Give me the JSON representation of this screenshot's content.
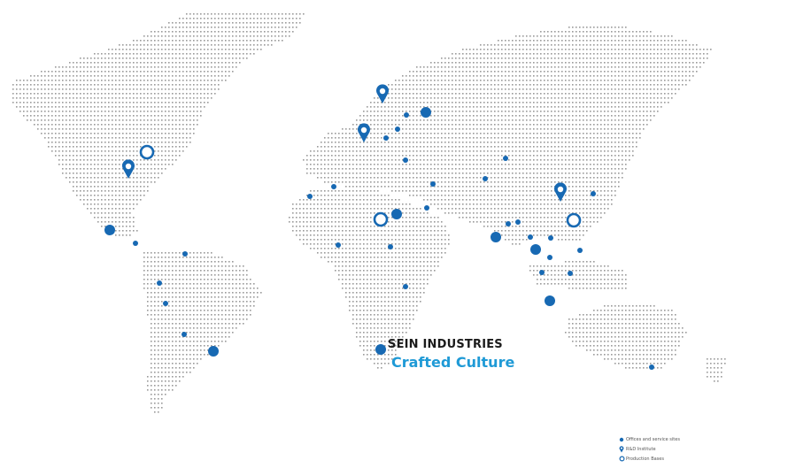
{
  "brand": {
    "title": "SEIN INDUSTRIES",
    "tagline": "Crafted Culture"
  },
  "legend": [
    {
      "type": "dot",
      "label": "Offices and service sites"
    },
    {
      "type": "pin",
      "label": "R&D Institute"
    },
    {
      "type": "ring",
      "label": "Production Bases"
    }
  ],
  "colors": {
    "marker": "#1769b3",
    "dots": "#9a9a9a",
    "brand_text": "#1b1b1b",
    "tagline": "#1f9ad6"
  }
}
